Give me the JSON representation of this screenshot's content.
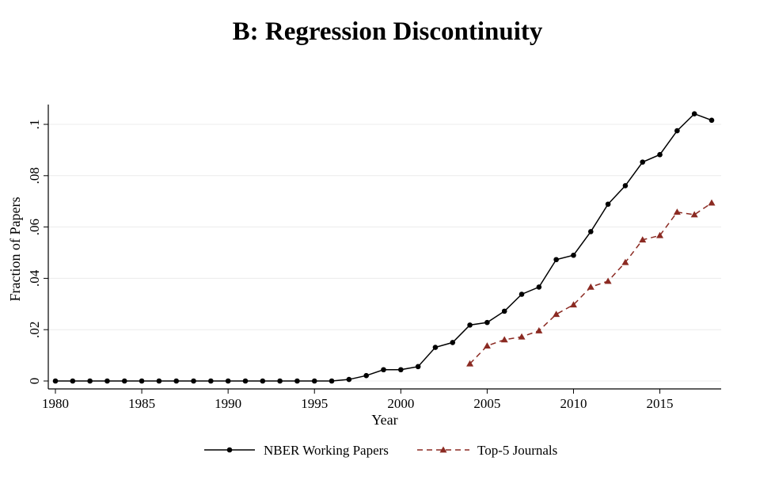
{
  "chart_data": {
    "type": "line",
    "title": "B: Regression Discontinuity",
    "xlabel": "Year",
    "ylabel": "Fraction of Papers",
    "xlim": [
      1980,
      2018
    ],
    "ylim": [
      0,
      0.1
    ],
    "xticks": [
      1980,
      1985,
      1990,
      1995,
      2000,
      2005,
      2010,
      2015
    ],
    "xtick_labels": [
      "1980",
      "1985",
      "1990",
      "1995",
      "2000",
      "2005",
      "2010",
      "2015"
    ],
    "yticks": [
      0,
      0.02,
      0.04,
      0.06,
      0.08,
      0.1
    ],
    "ytick_labels": [
      "0",
      ".02",
      ".04",
      ".06",
      ".08",
      ".1"
    ],
    "grid": "horizontal",
    "legend_position": "bottom",
    "series": [
      {
        "name": "NBER Working Papers",
        "color": "#000000",
        "line": "solid",
        "marker": "circle",
        "x": [
          1980,
          1981,
          1982,
          1983,
          1984,
          1985,
          1986,
          1987,
          1988,
          1989,
          1990,
          1991,
          1992,
          1993,
          1994,
          1995,
          1996,
          1997,
          1998,
          1999,
          2000,
          2001,
          2002,
          2003,
          2004,
          2005,
          2006,
          2007,
          2008,
          2009,
          2010,
          2011,
          2012,
          2013,
          2014,
          2015,
          2016,
          2017,
          2018
        ],
        "y": [
          0,
          0,
          0,
          0,
          0,
          0,
          0,
          0,
          0,
          0,
          0,
          0,
          0,
          0,
          0,
          0,
          0,
          0.0006,
          0.0021,
          0.0044,
          0.0044,
          0.0056,
          0.0131,
          0.015,
          0.0218,
          0.0228,
          0.0272,
          0.0338,
          0.0366,
          0.0473,
          0.049,
          0.0582,
          0.0689,
          0.0761,
          0.0853,
          0.0882,
          0.0975,
          0.1041,
          0.1016
        ]
      },
      {
        "name": "Top-5 Journals",
        "color": "#8b2a22",
        "line": "dashed",
        "marker": "triangle",
        "x": [
          2004,
          2005,
          2006,
          2007,
          2008,
          2009,
          2010,
          2011,
          2012,
          2013,
          2014,
          2015,
          2016,
          2017,
          2018
        ],
        "y": [
          0.0067,
          0.0137,
          0.0161,
          0.0172,
          0.0196,
          0.026,
          0.0297,
          0.0366,
          0.0389,
          0.0462,
          0.055,
          0.0567,
          0.0658,
          0.0648,
          0.0694
        ]
      }
    ]
  }
}
